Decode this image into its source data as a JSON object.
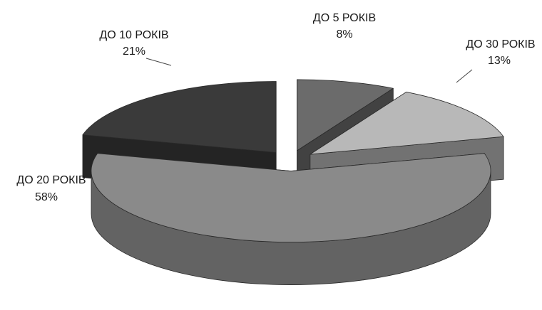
{
  "chart_data": {
    "type": "pie",
    "categories": [
      "ДО 5 РОКІВ",
      "ДО 30 РОКІВ",
      "ДО 20 РОКІВ",
      "ДО 10 РОКІВ"
    ],
    "values": [
      8,
      13,
      58,
      21
    ],
    "value_labels": [
      "8%",
      "13%",
      "58%",
      "21%"
    ],
    "colors": [
      "#6b6b6b",
      "#b8b8b8",
      "#8a8a8a",
      "#3a3a3a"
    ],
    "exploded": true,
    "three_d": true,
    "legend": "none"
  }
}
